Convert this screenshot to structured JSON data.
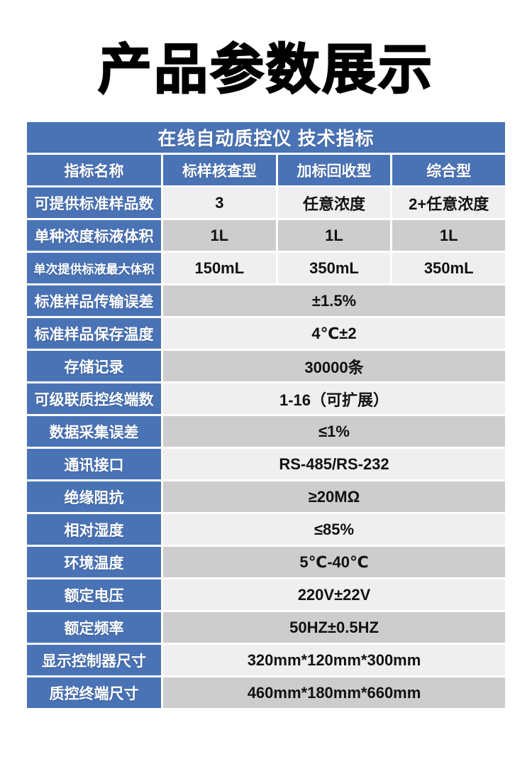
{
  "page": {
    "title": "产品参数展示"
  },
  "table": {
    "header": "在线自动质控仪 技术指标",
    "columns": [
      "指标名称",
      "标样核查型",
      "加标回收型",
      "综合型"
    ],
    "rows": [
      {
        "label": "可提供标准样品数",
        "values": [
          "3",
          "任意浓度",
          "2+任意浓度"
        ],
        "shade": "light",
        "small": false
      },
      {
        "label": "单种浓度标液体积",
        "values": [
          "1L",
          "1L",
          "1L"
        ],
        "shade": "dark",
        "small": false
      },
      {
        "label": "单次提供标液最大体积",
        "values": [
          "150mL",
          "350mL",
          "350mL"
        ],
        "shade": "light",
        "small": true
      },
      {
        "label": "标准样品传输误差",
        "values": [
          "±1.5%"
        ],
        "shade": "dark",
        "small": false
      },
      {
        "label": "标准样品保存温度",
        "values": [
          "4℃±2"
        ],
        "shade": "light",
        "small": false
      },
      {
        "label": "存储记录",
        "values": [
          "30000条"
        ],
        "shade": "dark",
        "small": false
      },
      {
        "label": "可级联质控终端数",
        "values": [
          "1-16（可扩展）"
        ],
        "shade": "light",
        "small": false
      },
      {
        "label": "数据采集误差",
        "values": [
          "≤1%"
        ],
        "shade": "dark",
        "small": false
      },
      {
        "label": "通讯接口",
        "values": [
          "RS-485/RS-232"
        ],
        "shade": "light",
        "small": false
      },
      {
        "label": "绝缘阻抗",
        "values": [
          "≥20MΩ"
        ],
        "shade": "dark",
        "small": false
      },
      {
        "label": "相对湿度",
        "values": [
          "≤85%"
        ],
        "shade": "light",
        "small": false
      },
      {
        "label": "环境温度",
        "values": [
          "5℃-40℃"
        ],
        "shade": "dark",
        "small": false
      },
      {
        "label": "额定电压",
        "values": [
          "220V±22V"
        ],
        "shade": "light",
        "small": false
      },
      {
        "label": "额定频率",
        "values": [
          "50HZ±0.5HZ"
        ],
        "shade": "dark",
        "small": false
      },
      {
        "label": "显示控制器尺寸",
        "values": [
          "320mm*120mm*300mm"
        ],
        "shade": "light",
        "small": false
      },
      {
        "label": "质控终端尺寸",
        "values": [
          "460mm*180mm*660mm"
        ],
        "shade": "dark",
        "small": false
      }
    ],
    "colors": {
      "blue": "#4a73b6",
      "row_light": "#efefef",
      "row_dark": "#cdcdcd",
      "header_text": "#ffffff",
      "value_text": "#111111"
    }
  }
}
